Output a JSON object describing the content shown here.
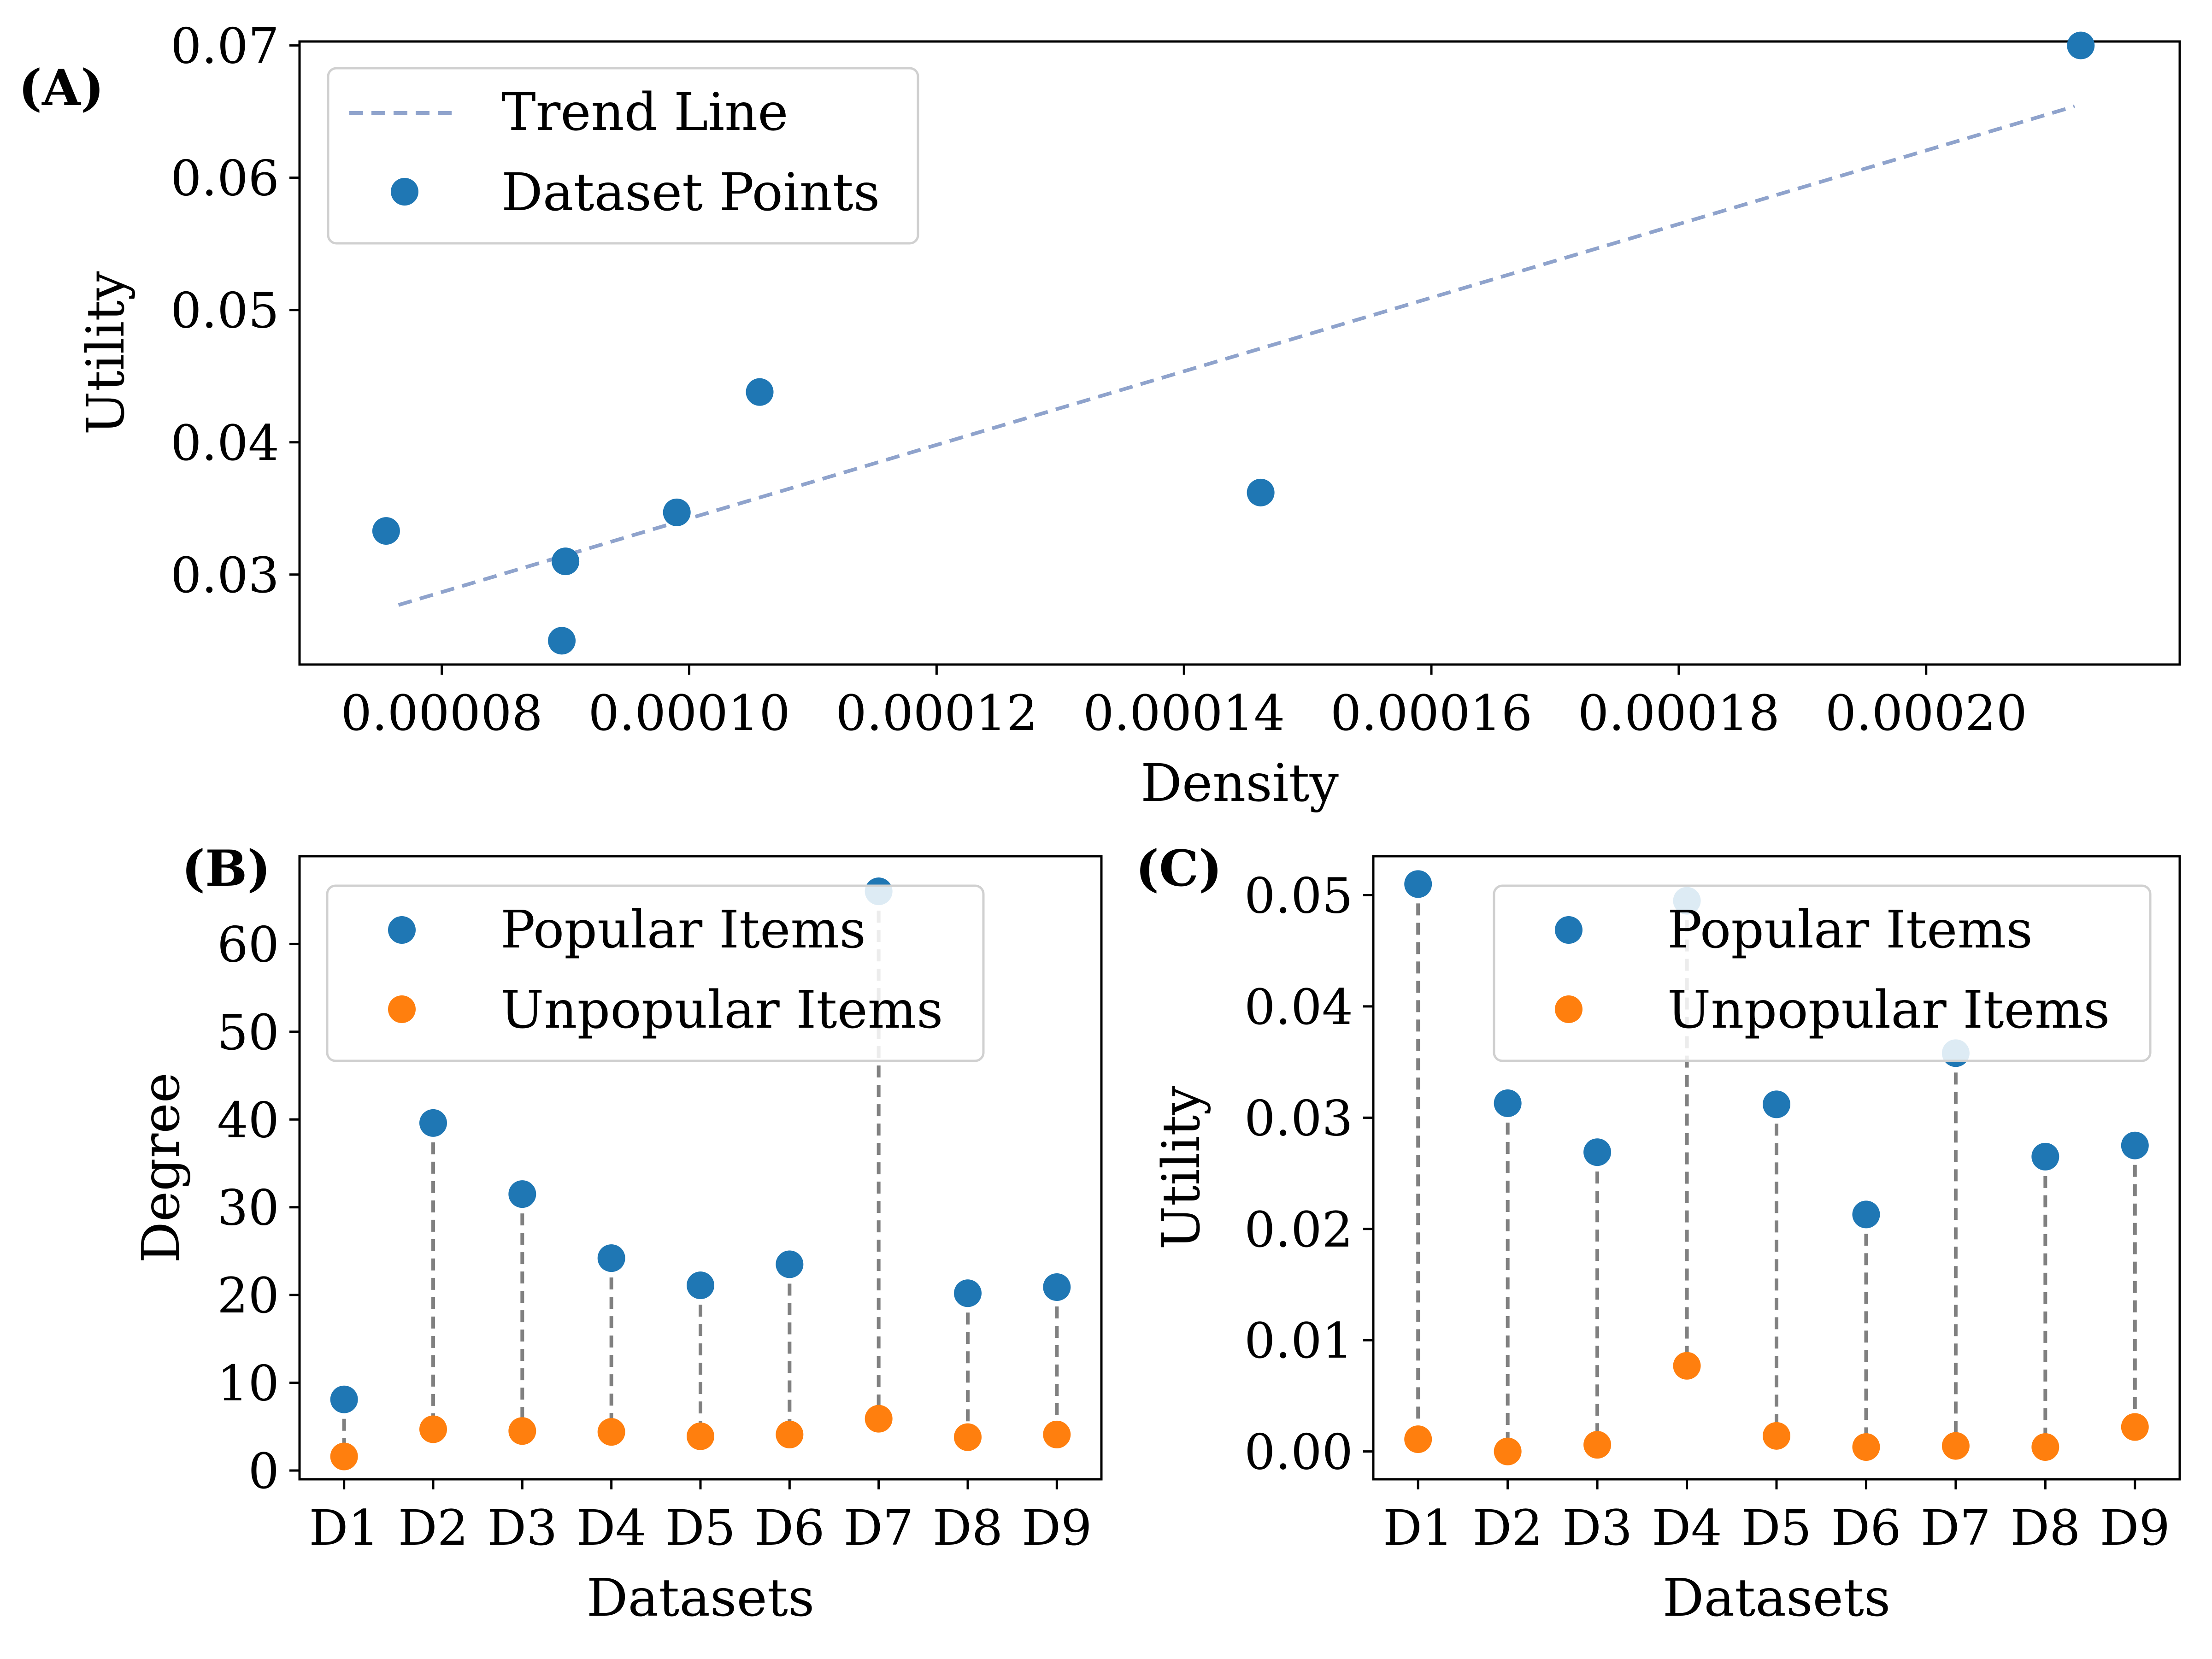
{
  "colors": {
    "popular": "#1f77b4",
    "unpopular": "#ff7f0e",
    "trend": "#8fa3cc",
    "stem": "#808080"
  },
  "chart_data": [
    {
      "panel": "(A)",
      "type": "scatter",
      "xlabel": "Density",
      "ylabel": "Utility",
      "xlim": [
        6.85e-05,
        0.0002205
      ],
      "ylim": [
        0.0232,
        0.0703
      ],
      "xticks": [
        8e-05,
        0.0001,
        0.00012,
        0.00014,
        0.00016,
        0.00018,
        0.0002
      ],
      "xtick_labels": [
        "0.00008",
        "0.00010",
        "0.00012",
        "0.00014",
        "0.00016",
        "0.00018",
        "0.00020"
      ],
      "yticks": [
        0.03,
        0.04,
        0.05,
        0.06,
        0.07
      ],
      "ytick_labels": [
        "0.03",
        "0.04",
        "0.05",
        "0.06",
        "0.07"
      ],
      "legend_position": "top-left",
      "legend": [
        "Trend Line",
        "Dataset Points"
      ],
      "points": [
        {
          "x": 7.55e-05,
          "y": 0.0333
        },
        {
          "x": 9e-05,
          "y": 0.031
        },
        {
          "x": 8.97e-05,
          "y": 0.025
        },
        {
          "x": 9.9e-05,
          "y": 0.0347
        },
        {
          "x": 0.0001057,
          "y": 0.0438
        },
        {
          "x": 0.0001462,
          "y": 0.0362
        },
        {
          "x": 0.0002125,
          "y": 0.07
        }
      ],
      "trend_line": {
        "x": [
          7.65e-05,
          0.000212
        ],
        "y": [
          0.0277,
          0.0654
        ]
      }
    },
    {
      "panel": "(B)",
      "type": "scatter",
      "xlabel": "Datasets",
      "ylabel": "Degree",
      "categories": [
        "D1",
        "D2",
        "D3",
        "D4",
        "D5",
        "D6",
        "D7",
        "D8",
        "D9"
      ],
      "ylim": [
        -1.0,
        70.0
      ],
      "yticks": [
        0,
        10,
        20,
        30,
        40,
        50,
        60
      ],
      "ytick_labels": [
        "0",
        "10",
        "20",
        "30",
        "40",
        "50",
        "60"
      ],
      "legend_position": "top",
      "series": [
        {
          "name": "Popular Items",
          "values": [
            8.1,
            39.6,
            31.5,
            24.2,
            21.1,
            23.5,
            66.0,
            20.2,
            20.9
          ]
        },
        {
          "name": "Unpopular Items",
          "values": [
            1.6,
            4.7,
            4.5,
            4.4,
            3.9,
            4.1,
            5.9,
            3.8,
            4.1
          ]
        }
      ]
    },
    {
      "panel": "(C)",
      "type": "scatter",
      "xlabel": "Datasets",
      "ylabel": "Utility",
      "categories": [
        "D1",
        "D2",
        "D3",
        "D4",
        "D5",
        "D6",
        "D7",
        "D8",
        "D9"
      ],
      "ylim": [
        -0.0025,
        0.0535
      ],
      "yticks": [
        0.0,
        0.01,
        0.02,
        0.03,
        0.04,
        0.05
      ],
      "ytick_labels": [
        "0.00",
        "0.01",
        "0.02",
        "0.03",
        "0.04",
        "0.05"
      ],
      "legend_position": "top-right",
      "series": [
        {
          "name": "Popular Items",
          "values": [
            0.051,
            0.0313,
            0.0269,
            0.0495,
            0.0312,
            0.0213,
            0.0358,
            0.0265,
            0.0275
          ]
        },
        {
          "name": "Unpopular Items",
          "values": [
            0.0011,
            0.0,
            0.0006,
            0.0077,
            0.0014,
            0.0004,
            0.0005,
            0.0004,
            0.0022
          ]
        }
      ]
    }
  ]
}
